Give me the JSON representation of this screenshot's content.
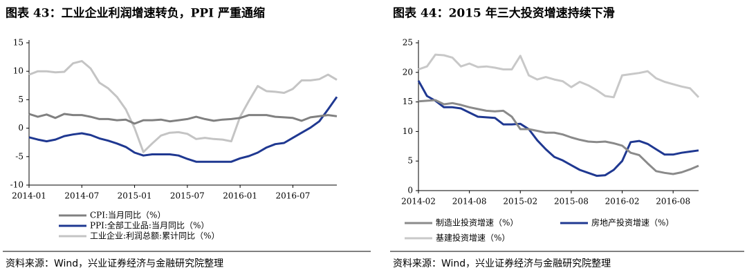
{
  "chart_data": [
    {
      "type": "line",
      "title": "图表 43：工业企业利润增速转负，PPI 严重通缩",
      "source": "资料来源：Wind，兴业证券经济与金融研究院整理",
      "categories": [
        "2014-01",
        null,
        null,
        null,
        null,
        null,
        "2014-07",
        null,
        null,
        null,
        null,
        null,
        "2015-01",
        null,
        null,
        null,
        null,
        null,
        "2015-07",
        null,
        null,
        null,
        null,
        null,
        "2016-01",
        null,
        null,
        null,
        null,
        null,
        "2016-07",
        null,
        null,
        null,
        null,
        null
      ],
      "ylim": [
        -10,
        15
      ],
      "yticks": [
        -10,
        -5,
        0,
        5,
        10,
        15
      ],
      "series": [
        {
          "name": "CPI:当月同比（%）",
          "color": "#808080",
          "values": [
            2.5,
            2.0,
            2.4,
            1.8,
            2.5,
            2.3,
            2.3,
            2.0,
            1.6,
            1.6,
            1.4,
            1.5,
            0.8,
            1.4,
            1.4,
            1.5,
            1.2,
            1.4,
            1.6,
            2.0,
            1.6,
            1.3,
            1.5,
            1.6,
            1.8,
            2.3,
            2.3,
            2.3,
            2.0,
            1.9,
            1.8,
            1.3,
            1.9,
            2.1,
            2.3,
            2.1
          ]
        },
        {
          "name": "PPI:全部工业品:当月同比（%）",
          "color": "#1f3891",
          "values": [
            -1.6,
            -2.0,
            -2.3,
            -2.0,
            -1.4,
            -1.1,
            -0.9,
            -1.2,
            -1.8,
            -2.2,
            -2.7,
            -3.3,
            -4.3,
            -4.8,
            -4.6,
            -4.6,
            -4.6,
            -4.8,
            -5.4,
            -5.9,
            -5.9,
            -5.9,
            -5.9,
            -5.9,
            -5.3,
            -4.9,
            -4.3,
            -3.4,
            -2.8,
            -2.6,
            -1.7,
            -0.8,
            0.1,
            1.2,
            3.3,
            5.5
          ]
        },
        {
          "name": "工业企业:利润总额:累计同比（%）",
          "color": "#c4c4c4",
          "values": [
            9.4,
            10.0,
            10.0,
            9.8,
            9.9,
            11.4,
            11.8,
            10.5,
            8.0,
            7.0,
            5.5,
            3.3,
            0.0,
            -4.2,
            -2.7,
            -1.3,
            -0.8,
            -0.7,
            -1.0,
            -1.9,
            -1.7,
            -1.9,
            -2.0,
            -2.3,
            2.0,
            4.8,
            7.4,
            6.5,
            6.4,
            6.2,
            6.9,
            8.4,
            8.4,
            8.6,
            9.4,
            8.5
          ]
        }
      ]
    },
    {
      "type": "line",
      "title": "图表 44：2015 年三大投资增速持续下滑",
      "source": "资料来源：Wind，兴业证券经济与金融研究院整理",
      "categories": [
        "2014-02",
        null,
        null,
        null,
        null,
        null,
        "2014-08",
        null,
        null,
        null,
        null,
        null,
        "2015-02",
        null,
        null,
        null,
        null,
        null,
        "2015-08",
        null,
        null,
        null,
        null,
        null,
        "2016-02",
        null,
        null,
        null,
        null,
        null,
        "2016-08",
        null,
        null,
        null
      ],
      "ylim": [
        0,
        25
      ],
      "yticks": [
        0,
        5,
        10,
        15,
        20,
        25
      ],
      "series": [
        {
          "name": "制造业投资增速（%）",
          "color": "#8a8a8a",
          "values": [
            15.1,
            15.2,
            15.3,
            14.6,
            14.8,
            14.5,
            14.1,
            13.8,
            13.5,
            13.4,
            13.5,
            12.5,
            10.4,
            10.4,
            10.1,
            9.8,
            9.8,
            9.5,
            9.0,
            8.6,
            8.3,
            8.2,
            8.3,
            8.0,
            7.6,
            6.4,
            6.0,
            4.6,
            3.3,
            3.0,
            2.8,
            3.1,
            3.6,
            4.2
          ]
        },
        {
          "name": "房地产投资增速（%）",
          "color": "#1f3891",
          "values": [
            18.6,
            16.0,
            15.2,
            14.1,
            14.1,
            13.9,
            13.2,
            12.5,
            12.4,
            12.3,
            11.2,
            11.2,
            11.3,
            10.4,
            8.5,
            7.0,
            5.7,
            5.1,
            4.3,
            3.5,
            3.0,
            2.5,
            2.6,
            3.5,
            5.0,
            8.2,
            8.4,
            7.9,
            7.0,
            6.1,
            6.1,
            6.4,
            6.6,
            6.8
          ]
        },
        {
          "name": "基建投资增速（%）",
          "color": "#c8c8c8",
          "values": [
            20.5,
            21.0,
            23.0,
            22.9,
            22.5,
            21.0,
            21.5,
            20.9,
            21.0,
            20.8,
            20.5,
            20.5,
            22.8,
            19.5,
            18.8,
            19.2,
            18.8,
            18.5,
            17.5,
            18.4,
            17.8,
            17.0,
            16.0,
            15.8,
            19.5,
            19.7,
            19.9,
            20.2,
            19.0,
            18.4,
            18.0,
            17.6,
            17.3,
            15.8
          ]
        }
      ]
    }
  ]
}
